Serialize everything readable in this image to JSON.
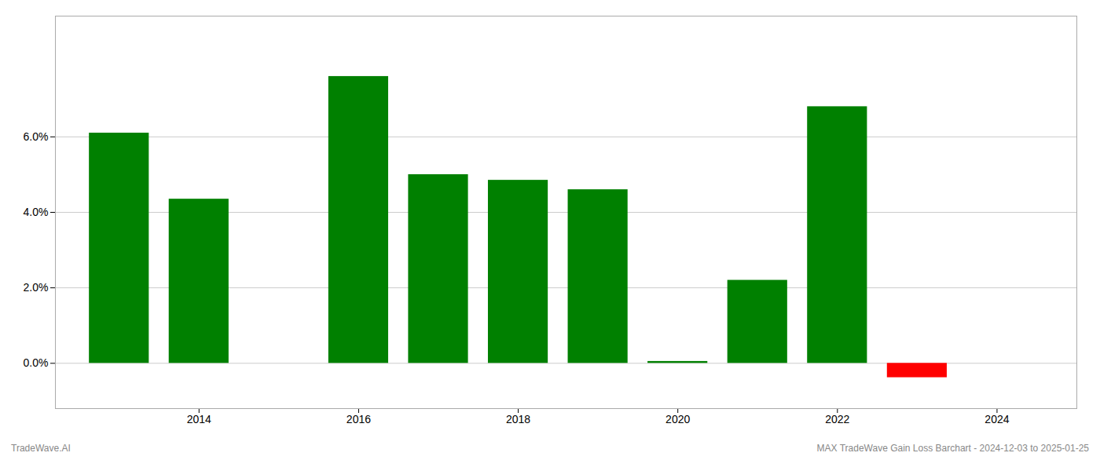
{
  "chart_data": {
    "type": "bar",
    "x": [
      2013,
      2014,
      2016,
      2017,
      2018,
      2019,
      2020,
      2021,
      2022,
      2023
    ],
    "values": [
      0.061,
      0.0435,
      0.076,
      0.05,
      0.0485,
      0.046,
      0.0005,
      0.022,
      0.068,
      -0.0038
    ],
    "colors": [
      "#008000",
      "#008000",
      "#008000",
      "#008000",
      "#008000",
      "#008000",
      "#008000",
      "#008000",
      "#008000",
      "#ff0000"
    ],
    "xlim": [
      2012.2,
      2025.0
    ],
    "xticks": [
      2014,
      2016,
      2018,
      2020,
      2022,
      2024
    ],
    "ylim": [
      -0.012,
      0.092
    ],
    "yticks": [
      {
        "value": 0.0,
        "label": "0.0%"
      },
      {
        "value": 0.02,
        "label": "2.0%"
      },
      {
        "value": 0.04,
        "label": "4.0%"
      },
      {
        "value": 0.06,
        "label": "6.0%"
      }
    ],
    "grid": true,
    "annotations": [
      "TradeWave.AI",
      "MAX TradeWave Gain Loss Barchart - 2024-12-03 to 2025-01-25"
    ]
  }
}
